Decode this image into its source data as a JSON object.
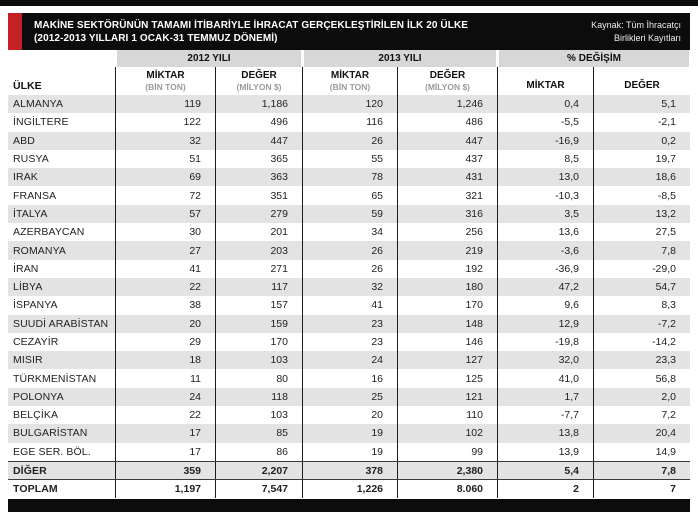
{
  "header": {
    "title": "MAKİNE SEKTÖRÜNÜN TAMAMI İTİBARİYLE İHRACAT GERÇEKLEŞTİRİLEN İLK 20 ÜLKE",
    "subtitle": "(2012-2013 YILLARI 1 OCAK-31 TEMMUZ DÖNEMİ)",
    "source_lines": [
      "Kaynak: Tüm İhracatçı",
      "Birlikleri Kayıtları"
    ]
  },
  "chart_data": {
    "type": "table",
    "title": "MAKİNE SEKTÖRÜNÜN TAMAMI İTİBARİYLE İHRACAT GERÇEKLEŞTİRİLEN İLK 20 ÜLKE",
    "subtitle": "(2012-2013 YILLARI 1 OCAK-31 TEMMUZ DÖNEMİ)",
    "source": "Kaynak: Tüm İhracatçı Birlikleri Kayıtları",
    "country_column_header": "ÜLKE",
    "column_groups": [
      "2012 YILI",
      "2013 YILI",
      "% DEĞİŞİM"
    ],
    "columns": [
      {
        "group": "2012 YILI",
        "label": "MİKTAR",
        "unit": "(BİN TON)"
      },
      {
        "group": "2012 YILI",
        "label": "DEĞER",
        "unit": "(MİLYON $)"
      },
      {
        "group": "2013 YILI",
        "label": "MİKTAR",
        "unit": "(BİN TON)"
      },
      {
        "group": "2013 YILI",
        "label": "DEĞER",
        "unit": "(MİLYON $)"
      },
      {
        "group": "% DEĞİŞİM",
        "label": "MİKTAR",
        "unit": ""
      },
      {
        "group": "% DEĞİŞİM",
        "label": "DEĞER",
        "unit": ""
      }
    ],
    "rows": [
      {
        "country": "ALMANYA",
        "values": [
          "119",
          "1,186",
          "120",
          "1,246",
          "0,4",
          "5,1"
        ],
        "summary": false
      },
      {
        "country": "İNGİLTERE",
        "values": [
          "122",
          "496",
          "116",
          "486",
          "-5,5",
          "-2,1"
        ],
        "summary": false
      },
      {
        "country": "ABD",
        "values": [
          "32",
          "447",
          "26",
          "447",
          "-16,9",
          "0,2"
        ],
        "summary": false
      },
      {
        "country": "RUSYA",
        "values": [
          "51",
          "365",
          "55",
          "437",
          "8,5",
          "19,7"
        ],
        "summary": false
      },
      {
        "country": "IRAK",
        "values": [
          "69",
          "363",
          "78",
          "431",
          "13,0",
          "18,6"
        ],
        "summary": false
      },
      {
        "country": "FRANSA",
        "values": [
          "72",
          "351",
          "65",
          "321",
          "-10,3",
          "-8,5"
        ],
        "summary": false
      },
      {
        "country": "İTALYA",
        "values": [
          "57",
          "279",
          "59",
          "316",
          "3,5",
          "13,2"
        ],
        "summary": false
      },
      {
        "country": "AZERBAYCAN",
        "values": [
          "30",
          "201",
          "34",
          "256",
          "13,6",
          "27,5"
        ],
        "summary": false
      },
      {
        "country": "ROMANYA",
        "values": [
          "27",
          "203",
          "26",
          "219",
          "-3,6",
          "7,8"
        ],
        "summary": false
      },
      {
        "country": "İRAN",
        "values": [
          "41",
          "271",
          "26",
          "192",
          "-36,9",
          "-29,0"
        ],
        "summary": false
      },
      {
        "country": "LİBYA",
        "values": [
          "22",
          "117",
          "32",
          "180",
          "47,2",
          "54,7"
        ],
        "summary": false
      },
      {
        "country": "İSPANYA",
        "values": [
          "38",
          "157",
          "41",
          "170",
          "9,6",
          "8,3"
        ],
        "summary": false
      },
      {
        "country": "SUUDİ ARABİSTAN",
        "values": [
          "20",
          "159",
          "23",
          "148",
          "12,9",
          "-7,2"
        ],
        "summary": false
      },
      {
        "country": "CEZAYİR",
        "values": [
          "29",
          "170",
          "23",
          "146",
          "-19,8",
          "-14,2"
        ],
        "summary": false
      },
      {
        "country": "MISIR",
        "values": [
          "18",
          "103",
          "24",
          "127",
          "32,0",
          "23,3"
        ],
        "summary": false
      },
      {
        "country": "TÜRKMENİSTAN",
        "values": [
          "11",
          "80",
          "16",
          "125",
          "41,0",
          "56,8"
        ],
        "summary": false
      },
      {
        "country": "POLONYA",
        "values": [
          "24",
          "118",
          "25",
          "121",
          "1,7",
          "2,0"
        ],
        "summary": false
      },
      {
        "country": "BELÇİKA",
        "values": [
          "22",
          "103",
          "20",
          "110",
          "-7,7",
          "7,2"
        ],
        "summary": false
      },
      {
        "country": "BULGARİSTAN",
        "values": [
          "17",
          "85",
          "19",
          "102",
          "13,8",
          "20,4"
        ],
        "summary": false
      },
      {
        "country": "EGE SER. BÖL.",
        "values": [
          "17",
          "86",
          "19",
          "99",
          "13,9",
          "14,9"
        ],
        "summary": false
      },
      {
        "country": "DİĞER",
        "values": [
          "359",
          "2,207",
          "378",
          "2,380",
          "5,4",
          "7,8"
        ],
        "summary": true
      },
      {
        "country": "TOPLAM",
        "values": [
          "1,197",
          "7,547",
          "1,226",
          "8.060",
          "2",
          "7"
        ],
        "summary": true
      }
    ],
    "colors": {
      "accent_red": "#c42127",
      "bar_black": "#0c0c0c",
      "row_stripe": "#e3e3e3",
      "group_header_bg": "#d7d7d7",
      "unit_text": "#9b9b9b"
    }
  }
}
